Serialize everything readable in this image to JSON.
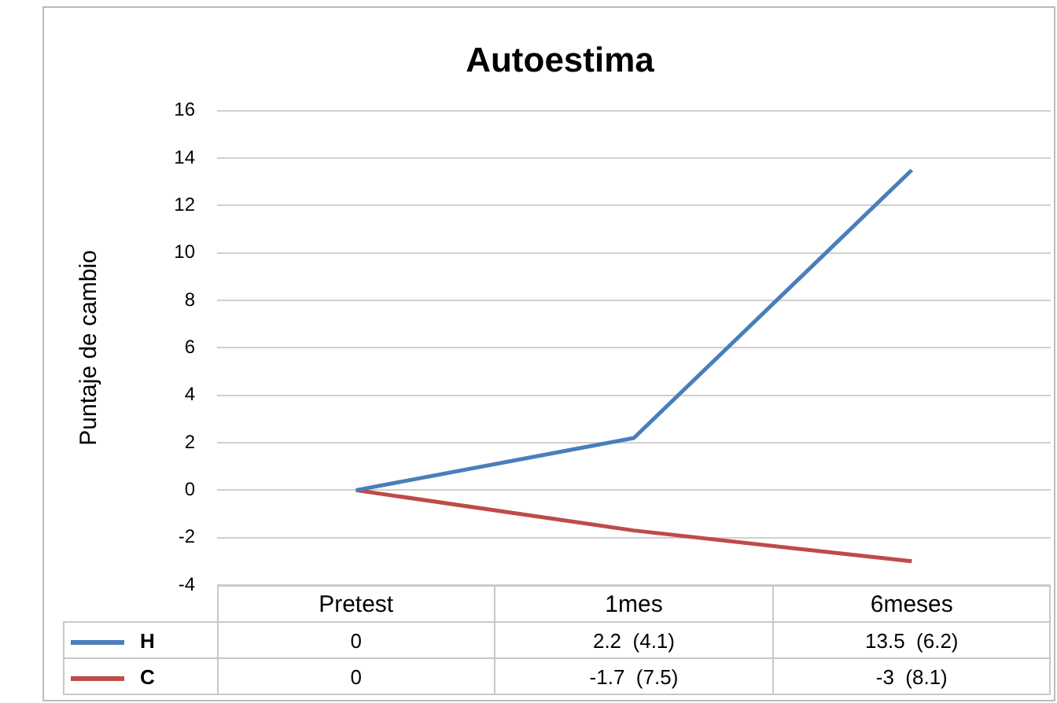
{
  "chart_data": {
    "type": "line",
    "title": "Autoestima",
    "ylabel": "Puntaje de cambio",
    "categories": [
      "Pretest",
      "1mes",
      "6meses"
    ],
    "series": [
      {
        "name": "H",
        "color": "#4a7ebb",
        "values": [
          0,
          2.2,
          13.5
        ],
        "value_labels": [
          "0",
          "2.2  (4.1)",
          "13.5  (6.2)"
        ]
      },
      {
        "name": "C",
        "color": "#be4b48",
        "values": [
          0,
          -1.7,
          -3
        ],
        "value_labels": [
          "0",
          "-1.7  (7.5)",
          "-3  (8.1)"
        ]
      }
    ],
    "ylim": [
      -4,
      16
    ],
    "yticks": [
      -4,
      -2,
      0,
      2,
      4,
      6,
      8,
      10,
      12,
      14,
      16
    ],
    "grid": "y",
    "legend": "bottom",
    "marker": "none",
    "line_style": "solid"
  }
}
